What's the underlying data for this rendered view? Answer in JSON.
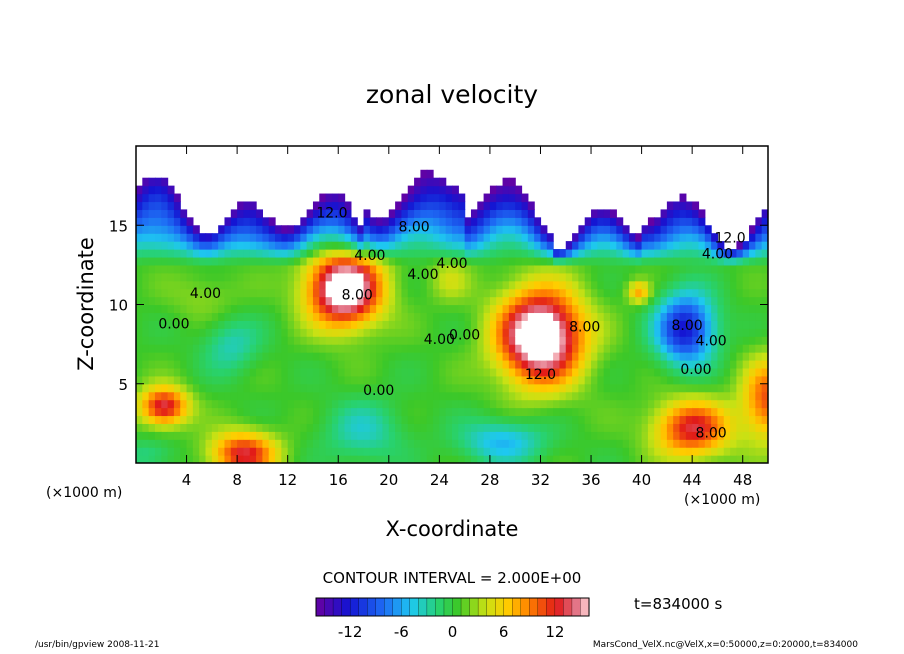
{
  "chart_data": {
    "type": "heatmap",
    "title": "zonal velocity",
    "xlabel": "X-coordinate",
    "ylabel": "Z-coordinate",
    "x_unit": "(×1000 m)",
    "y_unit": "(×1000 m)",
    "xlim": [
      0,
      50
    ],
    "ylim": [
      0,
      20
    ],
    "xticks": [
      4,
      8,
      12,
      16,
      20,
      24,
      28,
      32,
      36,
      40,
      44,
      48
    ],
    "yticks": [
      5,
      10,
      15
    ],
    "contour_interval_label": "CONTOUR INTERVAL = 2.000E+00",
    "time_label": "t=834000 s",
    "colorbar": {
      "range": [
        -16,
        16
      ],
      "ticks": [
        -12,
        -6,
        0,
        6,
        12
      ]
    },
    "contour_labels": [
      {
        "text": "12.0",
        "x": 15.5,
        "y": 15.5
      },
      {
        "text": "8.00",
        "x": 22,
        "y": 14.6
      },
      {
        "text": "4.00",
        "x": 18.5,
        "y": 12.8
      },
      {
        "text": "4.00",
        "x": 25,
        "y": 12.3
      },
      {
        "text": "4.00",
        "x": 22.7,
        "y": 11.6
      },
      {
        "text": "8.00",
        "x": 17.5,
        "y": 10.3
      },
      {
        "text": "0.00",
        "x": 3,
        "y": 8.5
      },
      {
        "text": "4.00",
        "x": 5.5,
        "y": 10.4
      },
      {
        "text": "4.00",
        "x": 24,
        "y": 7.5
      },
      {
        "text": "0.00",
        "x": 26,
        "y": 7.8
      },
      {
        "text": "8.00",
        "x": 35.5,
        "y": 8.3
      },
      {
        "text": "12.0",
        "x": 32,
        "y": 5.3
      },
      {
        "text": "0.00",
        "x": 19.2,
        "y": 4.3
      },
      {
        "text": "8.00",
        "x": 43.6,
        "y": 8.4
      },
      {
        "text": "4.00",
        "x": 45.5,
        "y": 7.4
      },
      {
        "text": "0.00",
        "x": 44.3,
        "y": 5.6
      },
      {
        "text": "12.0",
        "x": 47,
        "y": 13.9
      },
      {
        "text": "4.00",
        "x": 46,
        "y": 12.9
      },
      {
        "text": "8.00",
        "x": 45.5,
        "y": 1.6
      }
    ],
    "footer_left": "/usr/bin/gpview   2008-11-21",
    "footer_right": "MarsCond_VelX.nc@VelX,x=0:50000,z=0:20000,t=834000"
  }
}
